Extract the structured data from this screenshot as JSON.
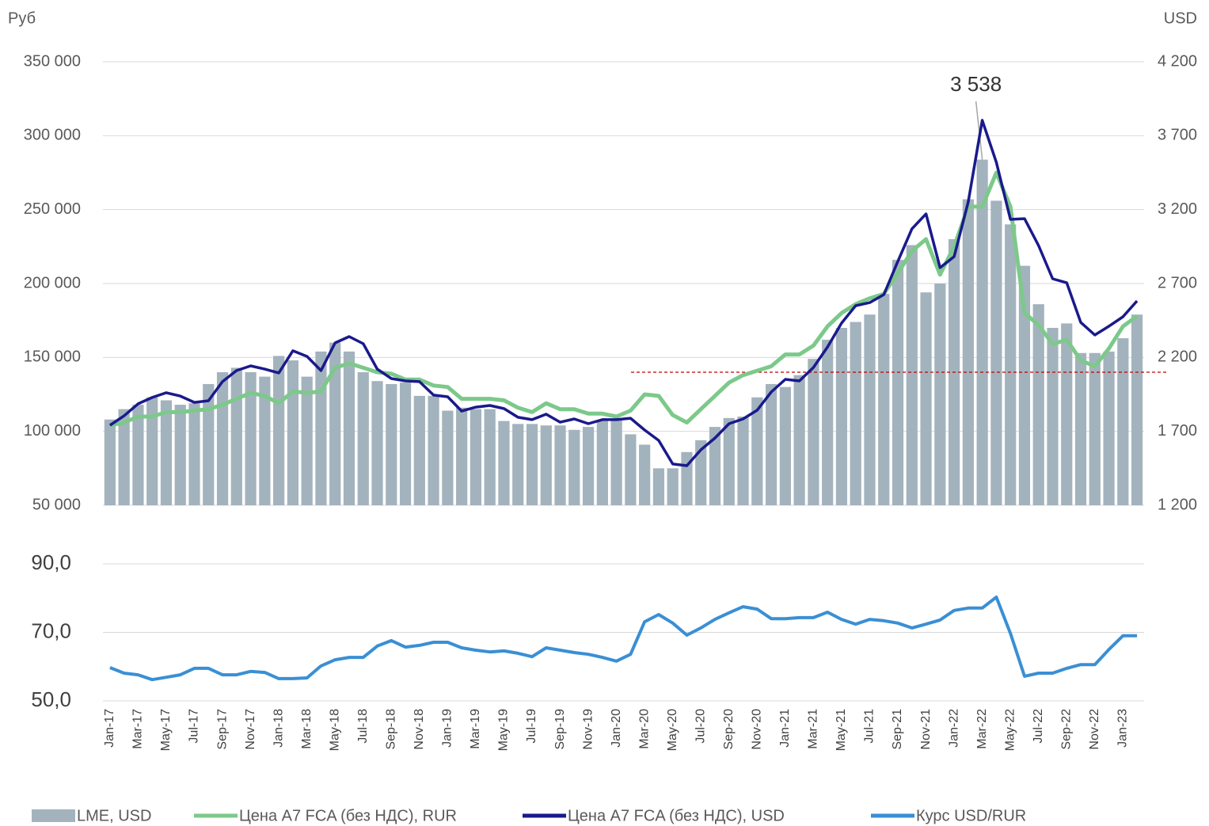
{
  "chart_data": [
    {
      "type": "bar",
      "y_label": "Руб",
      "y2_label": "USD",
      "ylim": [
        50000,
        350000
      ],
      "yticks": [
        {
          "value": 50000,
          "label": "50 000"
        },
        {
          "value": 100000,
          "label": "100 000"
        },
        {
          "value": 150000,
          "label": "150 000"
        },
        {
          "value": 200000,
          "label": "200 000"
        },
        {
          "value": 250000,
          "label": "250 000"
        },
        {
          "value": 300000,
          "label": "300 000"
        },
        {
          "value": 350000,
          "label": "350 000"
        }
      ],
      "y2lim": [
        1200,
        4200
      ],
      "y2ticks": [
        {
          "value": 1200,
          "label": "1 200"
        },
        {
          "value": 1700,
          "label": "1 700"
        },
        {
          "value": 2200,
          "label": "2 200"
        },
        {
          "value": 2700,
          "label": "2 700"
        },
        {
          "value": 3200,
          "label": "3 200"
        },
        {
          "value": 3700,
          "label": "3 700"
        },
        {
          "value": 4200,
          "label": "4 200"
        }
      ],
      "grid": true,
      "reference_line": {
        "value": 2100,
        "axis": "y2",
        "color": "#c00000"
      },
      "series": [
        {
          "name": "LME, USD",
          "type": "bar",
          "axis": "y2",
          "color": "#a3b3bd",
          "values": [
            1780,
            1850,
            1880,
            1930,
            1910,
            1880,
            1890,
            2020,
            2100,
            2130,
            2100,
            2070,
            2210,
            2180,
            2070,
            2240,
            2300,
            2240,
            2100,
            2040,
            2020,
            2030,
            1940,
            1940,
            1840,
            1860,
            1850,
            1850,
            1770,
            1750,
            1750,
            1740,
            1740,
            1710,
            1730,
            1770,
            1780,
            1680,
            1610,
            1450,
            1450,
            1560,
            1640,
            1730,
            1790,
            1800,
            1930,
            2020,
            2000,
            2080,
            2190,
            2320,
            2400,
            2440,
            2490,
            2630,
            2860,
            2960,
            2640,
            2700,
            3000,
            3270,
            3538,
            3260,
            3100,
            2820,
            2560,
            2400,
            2430,
            2230,
            2230,
            2240,
            2330,
            2490
          ],
          "value_labels": [
            null,
            null,
            null,
            null,
            null,
            null,
            null,
            null,
            null,
            null,
            null,
            null,
            null,
            null,
            null,
            null,
            null,
            null,
            null,
            null,
            null,
            null,
            null,
            null,
            null,
            null,
            null,
            null,
            null,
            null,
            null,
            null,
            null,
            null,
            null,
            null,
            null,
            null,
            null,
            null,
            null,
            null,
            null,
            null,
            null,
            null,
            null,
            null,
            null,
            null,
            null,
            null,
            null,
            null,
            null,
            null,
            null,
            null,
            null,
            null,
            null,
            null,
            "3 538",
            null,
            null,
            null,
            null,
            null,
            null,
            null,
            null,
            null,
            null,
            null
          ]
        },
        {
          "name": "Цена А7 FCA (без НДС), RUR",
          "type": "line",
          "axis": "y",
          "color": "#7cc98a",
          "values": [
            104000,
            106000,
            110000,
            110000,
            113000,
            113000,
            114000,
            115000,
            118000,
            122000,
            126000,
            124000,
            119000,
            127000,
            126000,
            127000,
            143000,
            146000,
            143000,
            140000,
            139000,
            135000,
            135000,
            131000,
            130000,
            122000,
            122000,
            122000,
            121000,
            116000,
            113000,
            119000,
            115000,
            115000,
            112000,
            112000,
            110000,
            114000,
            125000,
            124000,
            111000,
            106000,
            115000,
            124000,
            133000,
            138000,
            141000,
            144000,
            152000,
            152000,
            158000,
            171000,
            180000,
            186000,
            190000,
            193000,
            207000,
            222000,
            230000,
            206000,
            225000,
            252000,
            252000,
            275000,
            252000,
            180000,
            172000,
            159000,
            162000,
            148000,
            144000,
            156000,
            171000,
            178000
          ]
        },
        {
          "name": "Цена А7 FCA (без НДС), USD",
          "type": "line",
          "axis": "y2",
          "color": "#1a1a8c",
          "values": [
            1741,
            1805,
            1886,
            1929,
            1961,
            1939,
            1896,
            1907,
            2036,
            2111,
            2143,
            2121,
            2095,
            2245,
            2207,
            2111,
            2298,
            2341,
            2293,
            2121,
            2057,
            2041,
            2036,
            1945,
            1934,
            1837,
            1864,
            1875,
            1854,
            1795,
            1779,
            1816,
            1762,
            1784,
            1752,
            1779,
            1779,
            1789,
            1709,
            1639,
            1479,
            1468,
            1575,
            1655,
            1752,
            1784,
            1843,
            1966,
            2052,
            2041,
            2132,
            2271,
            2432,
            2550,
            2571,
            2625,
            2850,
            3070,
            3171,
            2807,
            2882,
            3252,
            3804,
            3520,
            3134,
            3139,
            2957,
            2732,
            2705,
            2437,
            2352,
            2411,
            2475,
            2582
          ]
        }
      ]
    },
    {
      "type": "line",
      "categories": [
        "Jan-17",
        null,
        "Mar-17",
        null,
        "May-17",
        null,
        "Jul-17",
        null,
        "Sep-17",
        null,
        "Nov-17",
        null,
        "Jan-18",
        null,
        "Mar-18",
        null,
        "May-18",
        null,
        "Jul-18",
        null,
        "Sep-18",
        null,
        "Nov-18",
        null,
        "Jan-19",
        null,
        "Mar-19",
        null,
        "May-19",
        null,
        "Jul-19",
        null,
        "Sep-19",
        null,
        "Nov-19",
        null,
        "Jan-20",
        null,
        "Mar-20",
        null,
        "May-20",
        null,
        "Jul-20",
        null,
        "Sep-20",
        null,
        "Nov-20",
        null,
        "Jan-21",
        null,
        "Mar-21",
        null,
        "May-21",
        null,
        "Jul-21",
        null,
        "Sep-21",
        null,
        "Nov-21",
        null,
        "Jan-22",
        null,
        "Mar-22",
        null,
        "May-22",
        null,
        "Jul-22",
        null,
        "Sep-22",
        null,
        "Nov-22",
        null,
        "Jan-23",
        null
      ],
      "ylim": [
        50,
        90
      ],
      "yticks": [
        {
          "value": 50,
          "label": "50,0"
        },
        {
          "value": 70,
          "label": "70,0"
        },
        {
          "value": 90,
          "label": "90,0"
        }
      ],
      "grid": true,
      "series": [
        {
          "name": "Курс USD/RUR",
          "color": "#3a8fd4",
          "values": [
            59.7,
            58.1,
            57.6,
            56.2,
            56.9,
            57.6,
            59.5,
            59.5,
            57.6,
            57.6,
            58.6,
            58.3,
            56.5,
            56.5,
            56.7,
            60.2,
            62.0,
            62.7,
            62.7,
            66.0,
            67.6,
            65.7,
            66.2,
            67.1,
            67.1,
            65.5,
            64.8,
            64.3,
            64.6,
            63.9,
            62.9,
            65.5,
            64.8,
            64.1,
            63.6,
            62.7,
            61.6,
            63.6,
            73.1,
            75.2,
            72.7,
            69.2,
            71.3,
            73.8,
            75.7,
            77.5,
            76.8,
            74.0,
            74.0,
            74.3,
            74.3,
            75.9,
            73.8,
            72.4,
            73.8,
            73.4,
            72.7,
            71.3,
            72.4,
            73.6,
            76.4,
            77.1,
            77.1,
            80.3,
            69.7,
            57.2,
            58.1,
            58.1,
            59.5,
            60.6,
            60.6,
            65.0,
            69.0,
            69.0
          ]
        }
      ]
    }
  ]
}
